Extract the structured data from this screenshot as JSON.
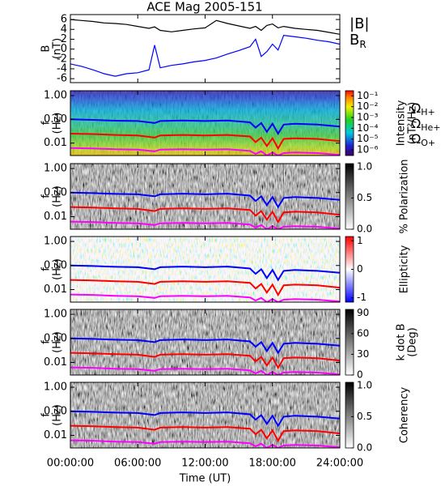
{
  "chart_data": [
    {
      "type": "line",
      "title": "ACE Mag 2005-151",
      "ylabel": [
        "B",
        "(nT)"
      ],
      "x": [
        0,
        1,
        2,
        3,
        4,
        5,
        6,
        7,
        7.5,
        8,
        9,
        10,
        11,
        12,
        13,
        14,
        15,
        16,
        16.5,
        17,
        17.5,
        18,
        18.5,
        19,
        20,
        21,
        22,
        23,
        24
      ],
      "xlim": [
        0,
        24
      ],
      "ylim": [
        -6.8,
        7
      ],
      "yticks": [
        6,
        4,
        2,
        0,
        -2,
        -4,
        -6
      ],
      "series": [
        {
          "name": "|B|",
          "color": "#000000",
          "values": [
            6,
            5.8,
            5.6,
            5.3,
            5.2,
            5,
            4.6,
            4.2,
            4.5,
            3.8,
            3.5,
            3.8,
            4.1,
            4.3,
            5.8,
            5.2,
            4.7,
            4.2,
            4.6,
            3.8,
            4.8,
            5.1,
            4.3,
            4.6,
            4.2,
            4,
            3.8,
            3.4,
            3
          ]
        },
        {
          "name": "B",
          "subscript": "R",
          "color": "#0000ff",
          "values": [
            -3,
            -3.5,
            -4.2,
            -5,
            -5.5,
            -5,
            -4.8,
            -4.2,
            0.8,
            -3.8,
            -3.3,
            -3,
            -2.6,
            -2.3,
            -1.8,
            -1,
            -0.3,
            0.5,
            2,
            -1.5,
            -0.5,
            1,
            -0.2,
            2.8,
            2.5,
            2.2,
            1.8,
            1.5,
            1
          ]
        }
      ]
    },
    {
      "type": "spectrogram",
      "ylabel": [
        "f",
        "(Hz)"
      ],
      "ylog": true,
      "xlim": [
        0,
        24
      ],
      "ylim": [
        0.003,
        1.6
      ],
      "yticks": [
        {
          "value": 1,
          "label": "1.00"
        },
        {
          "value": 0.1,
          "label": "0.10"
        },
        {
          "value": 0.01,
          "label": "0.01"
        }
      ],
      "colormap": "rainbow",
      "clabel": [
        "Intensity",
        "(nT²/Hz)"
      ],
      "clog": true,
      "clim": [
        3e-07,
        0.3
      ],
      "cticks": [
        {
          "value": 0.1,
          "label": "10⁻¹"
        },
        {
          "value": 0.01,
          "label": "10⁻²"
        },
        {
          "value": 0.001,
          "label": "10⁻³"
        },
        {
          "value": 0.0001,
          "label": "10⁻⁴"
        },
        {
          "value": 1e-05,
          "label": "10⁻⁵"
        },
        {
          "value": 1e-06,
          "label": "10⁻⁶"
        }
      ],
      "x": [
        0,
        2,
        4,
        6,
        7.5,
        8,
        10,
        12,
        14,
        16,
        16.5,
        17,
        17.5,
        18,
        18.5,
        19,
        20,
        22,
        24
      ],
      "series": [
        {
          "name": "Ω",
          "subscript": "H+",
          "color": "#0000ff",
          "values": [
            0.1,
            0.095,
            0.088,
            0.085,
            0.07,
            0.085,
            0.09,
            0.085,
            0.09,
            0.075,
            0.045,
            0.07,
            0.03,
            0.065,
            0.025,
            0.06,
            0.065,
            0.06,
            0.05
          ]
        },
        {
          "name": "Ω",
          "subscript": "He+",
          "color": "#ff0000",
          "values": [
            0.025,
            0.024,
            0.022,
            0.021,
            0.017,
            0.021,
            0.022,
            0.021,
            0.022,
            0.019,
            0.011,
            0.017,
            0.0075,
            0.016,
            0.006,
            0.015,
            0.016,
            0.015,
            0.012
          ]
        },
        {
          "name": "Ω",
          "subscript": "O+",
          "color": "#ff00ff",
          "values": [
            0.0062,
            0.006,
            0.0055,
            0.0053,
            0.0045,
            0.0053,
            0.0055,
            0.0053,
            0.0055,
            0.0047,
            0.0035,
            0.0045,
            0.003,
            0.004,
            0.003,
            0.0038,
            0.004,
            0.0038,
            0.0032
          ]
        }
      ]
    },
    {
      "type": "spectrogram",
      "ylabel": [
        "f",
        "(Hz)"
      ],
      "ylog": true,
      "xlim": [
        0,
        24
      ],
      "ylim": [
        0.003,
        1.6
      ],
      "yticks": [
        {
          "value": 1,
          "label": "1.00"
        },
        {
          "value": 0.1,
          "label": "0.10"
        },
        {
          "value": 0.01,
          "label": "0.01"
        }
      ],
      "colormap": "gray",
      "clabel": [
        "% Polarization"
      ],
      "clim": [
        0,
        1.05
      ],
      "cticks": [
        {
          "value": 1,
          "label": "1.0"
        },
        {
          "value": 0.5,
          "label": "0.5"
        },
        {
          "value": 0,
          "label": "0.0"
        }
      ]
    },
    {
      "type": "spectrogram",
      "ylabel": [
        "f",
        "(Hz)"
      ],
      "ylog": true,
      "xlim": [
        0,
        24
      ],
      "ylim": [
        0.003,
        1.6
      ],
      "yticks": [
        {
          "value": 1,
          "label": "1.00"
        },
        {
          "value": 0.1,
          "label": "0.10"
        },
        {
          "value": 0.01,
          "label": "0.01"
        }
      ],
      "colormap": "bwr",
      "clabel": [
        "Ellipticity"
      ],
      "clim": [
        -1.15,
        1.15
      ],
      "cticks": [
        1,
        0,
        -1
      ]
    },
    {
      "type": "spectrogram",
      "ylabel": [
        "f",
        "(Hz)"
      ],
      "ylog": true,
      "xlim": [
        0,
        24
      ],
      "ylim": [
        0.003,
        1.6
      ],
      "yticks": [
        {
          "value": 1,
          "label": "1.00"
        },
        {
          "value": 0.1,
          "label": "0.10"
        },
        {
          "value": 0.01,
          "label": "0.01"
        }
      ],
      "colormap": "gray",
      "clabel": [
        "k dot B",
        "(Deg)"
      ],
      "clim": [
        0,
        95
      ],
      "cticks": [
        90,
        60,
        30,
        0
      ]
    },
    {
      "type": "spectrogram",
      "ylabel": [
        "f",
        "(Hz)"
      ],
      "ylog": true,
      "xlim": [
        0,
        24
      ],
      "ylim": [
        0.003,
        1.6
      ],
      "yticks": [
        {
          "value": 1,
          "label": "1.00"
        },
        {
          "value": 0.1,
          "label": "0.10"
        },
        {
          "value": 0.01,
          "label": "0.01"
        }
      ],
      "colormap": "gray",
      "clabel": [
        "Coherency"
      ],
      "clim": [
        0,
        1.05
      ],
      "cticks": [
        {
          "value": 1,
          "label": "1.0"
        },
        {
          "value": 0.5,
          "label": "0.5"
        },
        {
          "value": 0,
          "label": "0.0"
        }
      ],
      "xlabel": "Time (UT)",
      "xticks": [
        {
          "value": 0,
          "label": "00:00:00"
        },
        {
          "value": 6,
          "label": "06:00:00"
        },
        {
          "value": 12,
          "label": "12:00:00"
        },
        {
          "value": 18,
          "label": "18:00:00"
        },
        {
          "value": 24,
          "label": "24:00:00"
        }
      ]
    }
  ]
}
